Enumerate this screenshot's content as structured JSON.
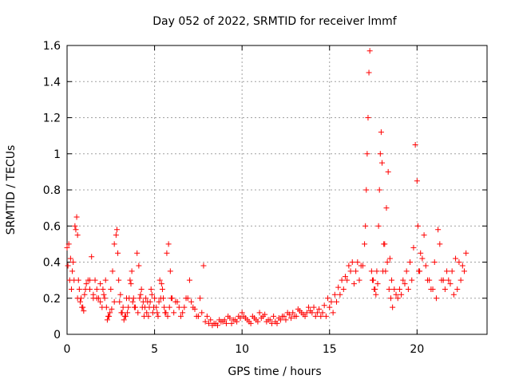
{
  "chart_data": {
    "type": "scatter",
    "title": "Day 052 of 2022, SRMTID for receiver lmmf",
    "xlabel": "GPS time / hours",
    "ylabel": "SRMTID / TECUs",
    "xlim": [
      0,
      24
    ],
    "ylim": [
      0,
      1.6
    ],
    "xticks": [
      0,
      5,
      10,
      15,
      20
    ],
    "xtick_labels": [
      "0",
      "5",
      "10",
      "15",
      "20"
    ],
    "yticks": [
      0,
      0.2,
      0.4,
      0.6,
      0.8,
      1.0,
      1.2,
      1.4,
      1.6
    ],
    "ytick_labels": [
      "0",
      "0.2",
      "0.4",
      "0.6",
      "0.8",
      "1",
      "1.2",
      "1.4",
      "1.6"
    ],
    "grid": true,
    "marker": "plus",
    "color": "#ff0000",
    "series": [
      {
        "name": "SRMTID",
        "x": [
          0.0,
          0.1,
          0.2,
          0.3,
          0.4,
          0.5,
          0.55,
          0.6,
          0.65,
          0.7,
          0.8,
          0.9,
          1.0,
          1.1,
          1.2,
          1.3,
          1.4,
          1.5,
          1.6,
          1.7,
          1.8,
          1.9,
          2.0,
          2.1,
          2.2,
          2.3,
          2.4,
          2.5,
          2.6,
          2.7,
          2.8,
          2.85,
          2.9,
          2.95,
          3.0,
          3.1,
          3.2,
          3.3,
          3.4,
          3.5,
          3.6,
          3.7,
          3.8,
          3.9,
          4.0,
          4.1,
          4.2,
          4.3,
          4.4,
          4.5,
          4.6,
          4.7,
          4.8,
          4.9,
          5.0,
          5.1,
          5.2,
          5.3,
          5.4,
          5.5,
          5.6,
          5.7,
          5.8,
          5.9,
          6.0,
          6.2,
          6.4,
          6.6,
          6.8,
          7.0,
          7.2,
          7.4,
          7.6,
          7.8,
          8.0,
          8.2,
          8.4,
          8.6,
          8.8,
          9.0,
          9.2,
          9.4,
          9.6,
          9.8,
          10.0,
          10.2,
          10.4,
          10.6,
          10.8,
          11.0,
          11.2,
          11.4,
          11.6,
          11.8,
          12.0,
          12.2,
          12.4,
          12.6,
          12.8,
          13.0,
          13.2,
          13.4,
          13.6,
          13.8,
          14.0,
          14.2,
          14.4,
          14.6,
          14.8,
          15.0,
          15.2,
          15.4,
          15.6,
          15.8,
          16.0,
          16.2,
          16.4,
          16.6,
          16.8,
          17.0,
          17.05,
          17.1,
          17.15,
          17.2,
          17.25,
          17.3,
          17.4,
          17.5,
          17.6,
          17.7,
          17.8,
          17.85,
          17.9,
          17.95,
          18.0,
          18.1,
          18.2,
          18.3,
          18.4,
          18.5,
          18.6,
          18.8,
          19.0,
          19.2,
          19.4,
          19.6,
          19.8,
          19.9,
          20.0,
          20.05,
          20.1,
          20.2,
          20.4,
          20.6,
          20.8,
          21.0,
          21.2,
          21.3,
          21.4,
          21.6,
          21.8,
          22.0,
          22.2,
          22.4,
          22.6,
          22.8,
          0.05,
          0.15,
          0.25,
          0.35,
          0.45,
          0.6,
          0.75,
          0.85,
          0.95,
          1.05,
          1.3,
          1.5,
          1.7,
          1.9,
          2.05,
          2.15,
          2.25,
          2.35,
          2.45,
          2.55,
          2.7,
          3.05,
          3.15,
          3.25,
          3.35,
          3.45,
          3.55,
          3.65,
          3.75,
          3.85,
          4.05,
          4.15,
          4.25,
          4.35,
          4.45,
          4.55,
          4.65,
          4.75,
          4.85,
          4.95,
          5.15,
          5.25,
          5.35,
          5.45,
          5.55,
          5.65,
          5.75,
          5.85,
          5.95,
          6.1,
          6.3,
          6.5,
          6.7,
          6.9,
          7.1,
          7.3,
          7.5,
          7.7,
          7.9,
          8.1,
          8.3,
          8.5,
          8.7,
          8.9,
          9.1,
          9.3,
          9.5,
          9.7,
          9.9,
          10.1,
          10.3,
          10.5,
          10.7,
          10.9,
          11.1,
          11.3,
          11.5,
          11.7,
          11.9,
          12.1,
          12.3,
          12.5,
          12.7,
          12.9,
          13.1,
          13.3,
          13.5,
          13.7,
          13.9,
          14.1,
          14.3,
          14.5,
          14.7,
          14.9,
          15.1,
          15.3,
          15.5,
          15.7,
          15.9,
          16.1,
          16.3,
          16.5,
          16.7,
          16.9,
          17.45,
          17.55,
          17.65,
          17.75,
          18.05,
          18.15,
          18.25,
          18.35,
          18.45,
          18.55,
          18.7,
          18.9,
          19.1,
          19.3,
          19.5,
          19.7,
          20.15,
          20.3,
          20.5,
          20.7,
          20.9,
          21.1,
          21.5,
          21.7,
          21.9,
          22.1,
          22.3,
          22.5,
          22.7
        ],
        "y": [
          0.48,
          0.5,
          0.42,
          0.35,
          0.3,
          0.58,
          0.65,
          0.55,
          0.3,
          0.25,
          0.2,
          0.15,
          0.22,
          0.28,
          0.3,
          0.25,
          0.43,
          0.2,
          0.3,
          0.25,
          0.2,
          0.18,
          0.15,
          0.22,
          0.3,
          0.08,
          0.1,
          0.25,
          0.35,
          0.5,
          0.55,
          0.58,
          0.45,
          0.3,
          0.18,
          0.12,
          0.15,
          0.1,
          0.2,
          0.15,
          0.3,
          0.35,
          0.2,
          0.15,
          0.45,
          0.38,
          0.22,
          0.15,
          0.1,
          0.2,
          0.18,
          0.15,
          0.25,
          0.12,
          0.2,
          0.15,
          0.1,
          0.3,
          0.28,
          0.2,
          0.12,
          0.45,
          0.5,
          0.35,
          0.2,
          0.18,
          0.15,
          0.12,
          0.2,
          0.3,
          0.15,
          0.1,
          0.2,
          0.38,
          0.1,
          0.08,
          0.06,
          0.05,
          0.07,
          0.08,
          0.1,
          0.06,
          0.08,
          0.1,
          0.12,
          0.09,
          0.07,
          0.1,
          0.08,
          0.12,
          0.1,
          0.07,
          0.08,
          0.1,
          0.06,
          0.08,
          0.1,
          0.12,
          0.09,
          0.1,
          0.14,
          0.12,
          0.1,
          0.15,
          0.12,
          0.1,
          0.14,
          0.12,
          0.1,
          0.15,
          0.12,
          0.18,
          0.22,
          0.25,
          0.3,
          0.35,
          0.28,
          0.4,
          0.38,
          0.5,
          0.6,
          0.8,
          1.0,
          1.2,
          1.45,
          1.57,
          0.35,
          0.3,
          0.25,
          0.35,
          0.6,
          0.8,
          1.0,
          1.12,
          0.95,
          0.5,
          0.35,
          0.4,
          0.25,
          0.2,
          0.15,
          0.22,
          0.25,
          0.3,
          0.35,
          0.4,
          0.48,
          1.05,
          0.85,
          0.6,
          0.35,
          0.45,
          0.55,
          0.3,
          0.25,
          0.4,
          0.58,
          0.5,
          0.3,
          0.25,
          0.3,
          0.35,
          0.42,
          0.4,
          0.38,
          0.45,
          0.38,
          0.3,
          0.25,
          0.4,
          0.6,
          0.2,
          0.18,
          0.15,
          0.13,
          0.25,
          0.3,
          0.22,
          0.2,
          0.28,
          0.25,
          0.2,
          0.15,
          0.1,
          0.12,
          0.14,
          0.18,
          0.22,
          0.12,
          0.08,
          0.1,
          0.12,
          0.2,
          0.28,
          0.18,
          0.15,
          0.12,
          0.2,
          0.25,
          0.18,
          0.15,
          0.12,
          0.1,
          0.18,
          0.22,
          0.15,
          0.12,
          0.18,
          0.2,
          0.25,
          0.15,
          0.12,
          0.1,
          0.15,
          0.2,
          0.12,
          0.18,
          0.1,
          0.15,
          0.2,
          0.18,
          0.14,
          0.1,
          0.12,
          0.07,
          0.06,
          0.05,
          0.06,
          0.08,
          0.07,
          0.06,
          0.09,
          0.08,
          0.07,
          0.09,
          0.1,
          0.08,
          0.06,
          0.09,
          0.07,
          0.09,
          0.11,
          0.08,
          0.06,
          0.07,
          0.09,
          0.1,
          0.08,
          0.11,
          0.12,
          0.1,
          0.13,
          0.11,
          0.12,
          0.13,
          0.15,
          0.12,
          0.1,
          0.16,
          0.2,
          0.18,
          0.22,
          0.26,
          0.3,
          0.32,
          0.38,
          0.4,
          0.35,
          0.3,
          0.38,
          0.3,
          0.25,
          0.22,
          0.28,
          0.35,
          0.5,
          0.7,
          0.9,
          0.42,
          0.3,
          0.25,
          0.2,
          0.22,
          0.28,
          0.25,
          0.3,
          0.35,
          0.42,
          0.38,
          0.3,
          0.25,
          0.2,
          0.3,
          0.35,
          0.28,
          0.22,
          0.25,
          0.3,
          0.35
        ]
      }
    ]
  }
}
